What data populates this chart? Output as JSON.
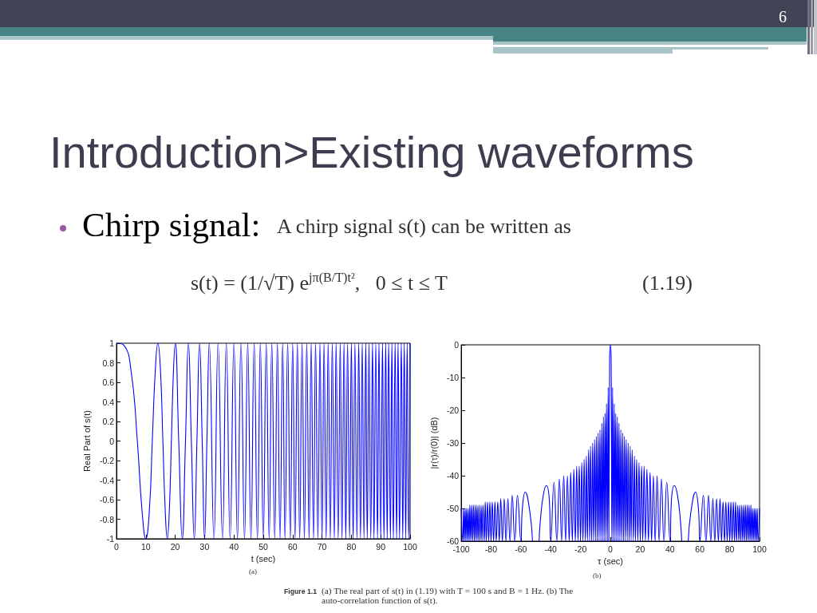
{
  "chart_data": [
    {
      "type": "line",
      "title": "Introduction>Existing waveforms",
      "xlabel": "t (sec)",
      "ylabel": "Real Part of s(t)",
      "annotations": [
        "6",
        "Chirp signal:",
        "A chirp signal s(t) can be written as",
        "s(t) = (1/√T) e$^{jπ(B/T)t²}$,   0 ≤ t ≤ T",
        "(1.19)",
        "(a)",
        "Figure 1.1",
        "(a) The real part of s(t) in (1.19) with T = 100 s and B = 1 Hz. (b) The auto-correlation function of s(t)."
      ],
      "color": "#0000ff",
      "xlim": [
        0,
        100
      ],
      "xticks": [
        0,
        10,
        20,
        30,
        40,
        50,
        60,
        70,
        80,
        90,
        100
      ],
      "ylim": [
        -1,
        1
      ],
      "yticks": [
        -1,
        -0.8,
        -0.6,
        -0.4,
        -0.2,
        0,
        0.2,
        0.4,
        0.6,
        0.8,
        1
      ],
      "x": [
        0,
        2.5,
        5,
        7.1,
        8.7,
        10,
        11.2,
        12.2,
        13.2,
        14.1,
        15,
        15.8,
        16.6,
        17.3,
        18,
        18.7,
        19.4,
        20,
        21.2,
        22.4,
        23.5,
        24.5,
        25.5,
        26.5,
        27.4,
        28.3,
        29.2,
        30,
        30.8,
        31.6,
        33.2,
        34.6,
        36.1,
        37.4,
        38.7,
        40,
        41.2,
        42.4,
        43.6,
        44.7,
        45.8,
        46.9,
        48,
        49,
        50,
        51,
        52,
        52.9,
        53.9,
        54.8,
        55.7,
        56.6,
        57.4,
        58.3,
        59.2,
        60,
        60.8,
        61.6,
        62.4,
        63.2,
        64,
        64.8,
        65.6,
        66.3,
        67.1,
        67.8,
        68.6,
        69.3,
        70,
        70.7,
        71.4,
        72.1,
        72.8,
        73.5,
        74.2,
        74.8,
        75.5,
        76.2,
        76.8,
        77.5,
        78.1,
        78.7,
        79.4,
        80,
        80.6,
        81.2,
        81.9,
        82.5,
        83.1,
        83.7,
        84.3,
        84.9,
        85.4,
        86,
        86.6,
        87.2,
        87.7,
        88.3,
        88.9,
        89.4,
        90,
        90.6,
        91.1,
        91.7,
        92.2,
        92.7,
        93.3,
        93.8,
        94.3,
        94.9,
        95.4,
        95.9,
        96.4,
        97,
        97.5,
        98,
        98.5,
        99,
        99.5,
        100
      ],
      "values": [
        1,
        0.98,
        0.71,
        0,
        -0.71,
        -1,
        -0.71,
        0,
        0.71,
        1,
        0.71,
        0,
        -0.71,
        -1,
        -0.71,
        0,
        0.71,
        1,
        0,
        -1,
        0,
        1,
        0,
        -1,
        0,
        1,
        0,
        -1,
        0,
        1,
        -1,
        1,
        -1,
        1,
        -1,
        1,
        -1,
        1,
        -1,
        1,
        -1,
        1,
        -1,
        1,
        -1,
        1,
        -1,
        1,
        -1,
        1,
        -1,
        1,
        -1,
        1,
        -1,
        1,
        -1,
        1,
        -1,
        1,
        -1,
        1,
        -1,
        1,
        -1,
        1,
        -1,
        1,
        -1,
        1,
        -1,
        1,
        -1,
        1,
        -1,
        1,
        -1,
        1,
        -1,
        1,
        -1,
        1,
        -1,
        1,
        -1,
        1,
        -1,
        1,
        -1,
        1,
        -1,
        1,
        -1,
        1,
        -1,
        1,
        -1,
        1,
        -1,
        1,
        -1,
        1,
        -1,
        1,
        -1,
        1,
        -1,
        1,
        -1,
        1,
        -1,
        1,
        -1,
        1,
        -1,
        1,
        -1,
        1,
        -1,
        1
      ]
    },
    {
      "type": "line",
      "xlabel": "τ (sec)",
      "ylabel": "|r(τ)/r(0)| (dB)",
      "annotations": [
        "(b)"
      ],
      "color": "#0000ff",
      "xlim": [
        -100,
        100
      ],
      "xticks": [
        -100,
        -80,
        -60,
        -40,
        -20,
        0,
        20,
        40,
        60,
        80,
        100
      ],
      "ylim": [
        -60,
        0
      ],
      "yticks": [
        -60,
        -50,
        -40,
        -30,
        -20,
        -10,
        0
      ],
      "x": [
        -100,
        -99,
        -98.5,
        -98,
        -97.4,
        -96.9,
        -96.4,
        -95.8,
        -95.3,
        -94.7,
        -94.2,
        -93.6,
        -93,
        -92.4,
        -91.8,
        -91.2,
        -90.6,
        -90,
        -89.4,
        -88.7,
        -88.1,
        -87.4,
        -86.7,
        -86.1,
        -85.4,
        -84.6,
        -83.9,
        -83.2,
        -82.4,
        -81.6,
        -80.8,
        -80,
        -79.2,
        -78.3,
        -77.4,
        -76.5,
        -75.5,
        -74.5,
        -73.5,
        -72.4,
        -71.2,
        -70,
        -68.7,
        -67.3,
        -65.8,
        -64.1,
        -62.3,
        -60,
        -59,
        -57.1,
        -54,
        -52.2,
        -50,
        -47.8,
        -47,
        -45,
        -42.9,
        -41,
        -40,
        -37.8,
        -35.9,
        -34.2,
        -32.7,
        -31.3,
        -30,
        -28.8,
        -27.6,
        -26.6,
        -25.5,
        -24.5,
        -23.5,
        -22.6,
        -21.7,
        -20.9,
        -20,
        -19.2,
        -18.4,
        -17.6,
        -16.8,
        -16.1,
        -15.4,
        -14.6,
        -13.9,
        -13.3,
        -12.6,
        -11.9,
        -11.3,
        -10.6,
        -10,
        -9.4,
        -8.8,
        -8.2,
        -7.6,
        -7,
        -6.4,
        -5.8,
        -5.3,
        -4.7,
        -4.2,
        -3.6,
        -3.1,
        -2.6,
        -2,
        -1.5,
        -1,
        -0.5,
        0,
        0.5,
        1,
        1.5,
        2,
        2.6,
        3.1,
        3.6,
        4.2,
        4.7,
        5.3,
        5.8,
        6.4,
        7,
        7.6,
        8.2,
        8.8,
        9.4,
        10,
        10.6,
        11.3,
        11.9,
        12.6,
        13.3,
        13.9,
        14.6,
        15.4,
        16.1,
        16.8,
        17.6,
        18.4,
        19.2,
        20,
        20.9,
        21.7,
        22.6,
        23.5,
        24.5,
        25.5,
        26.6,
        27.6,
        28.8,
        30,
        31.3,
        32.7,
        34.2,
        35.9,
        37.8,
        40,
        41,
        42.9,
        45,
        47,
        47.8,
        50,
        52.2,
        54,
        57.1,
        59,
        60,
        62.3,
        64.1,
        65.8,
        67.3,
        68.7,
        70,
        71.2,
        72.4,
        73.5,
        74.5,
        75.5,
        76.5,
        77.4,
        78.3,
        79.2,
        80,
        80.8,
        81.6,
        82.4,
        83.2,
        83.9,
        84.6,
        85.4,
        86.1,
        86.7,
        87.4,
        88.1,
        88.7,
        89.4,
        90,
        90.6,
        91.2,
        91.8,
        92.4,
        93,
        93.6,
        94.2,
        94.7,
        95.3,
        95.8,
        96.4,
        96.9,
        97.4,
        98,
        98.5,
        99,
        100
      ],
      "values": [
        -50,
        -60,
        -50,
        -60,
        -50,
        -60,
        -50,
        -60,
        -50,
        -60,
        -49,
        -60,
        -49,
        -60,
        -49,
        -60,
        -49,
        -60,
        -49,
        -60,
        -49,
        -60,
        -49,
        -60,
        -49,
        -60,
        -48,
        -60,
        -48,
        -60,
        -48,
        -60,
        -48,
        -60,
        -48,
        -60,
        -48,
        -60,
        -47,
        -60,
        -47,
        -60,
        -47,
        -60,
        -46,
        -60,
        -46,
        -60,
        -50,
        -45,
        -51,
        -60,
        null,
        -60,
        -54,
        -46,
        -43,
        -47,
        -60,
        -42,
        -60,
        -41,
        -60,
        -40,
        -60,
        -40,
        -60,
        -39,
        -60,
        -38,
        -60,
        -37,
        -60,
        -37,
        -60,
        -36,
        -60,
        -35,
        -60,
        -34,
        -60,
        -32,
        -60,
        -31,
        -60,
        -30,
        -60,
        -29,
        -60,
        -28,
        -60,
        -27,
        -60,
        -26,
        -60,
        -24,
        -60,
        -22,
        -60,
        -21,
        -60,
        -18,
        -60,
        -13,
        -60,
        -4,
        0,
        -4,
        -60,
        -13,
        -60,
        -18,
        -60,
        -21,
        -60,
        -22,
        -60,
        -24,
        -60,
        -26,
        -60,
        -27,
        -60,
        -28,
        -60,
        -29,
        -60,
        -30,
        -60,
        -31,
        -60,
        -32,
        -60,
        -34,
        -60,
        -35,
        -60,
        -36,
        -60,
        -37,
        -60,
        -37,
        -60,
        -38,
        -60,
        -39,
        -60,
        -40,
        -60,
        -40,
        -60,
        -41,
        -60,
        -42,
        -60,
        -47,
        -43,
        -46,
        -54,
        -60,
        null,
        -60,
        -51,
        -45,
        -50,
        -60,
        -46,
        -60,
        -46,
        -60,
        -47,
        -60,
        -47,
        -60,
        -47,
        -60,
        -48,
        -60,
        -48,
        -60,
        -48,
        -60,
        -48,
        -60,
        -48,
        -60,
        -48,
        -60,
        -49,
        -60,
        -49,
        -60,
        -49,
        -60,
        -49,
        -60,
        -49,
        -60,
        -49,
        -60,
        -49,
        -60,
        -49,
        -60,
        -50,
        -60,
        -50,
        -60,
        -50,
        -60,
        -50,
        -60,
        -50
      ]
    }
  ]
}
